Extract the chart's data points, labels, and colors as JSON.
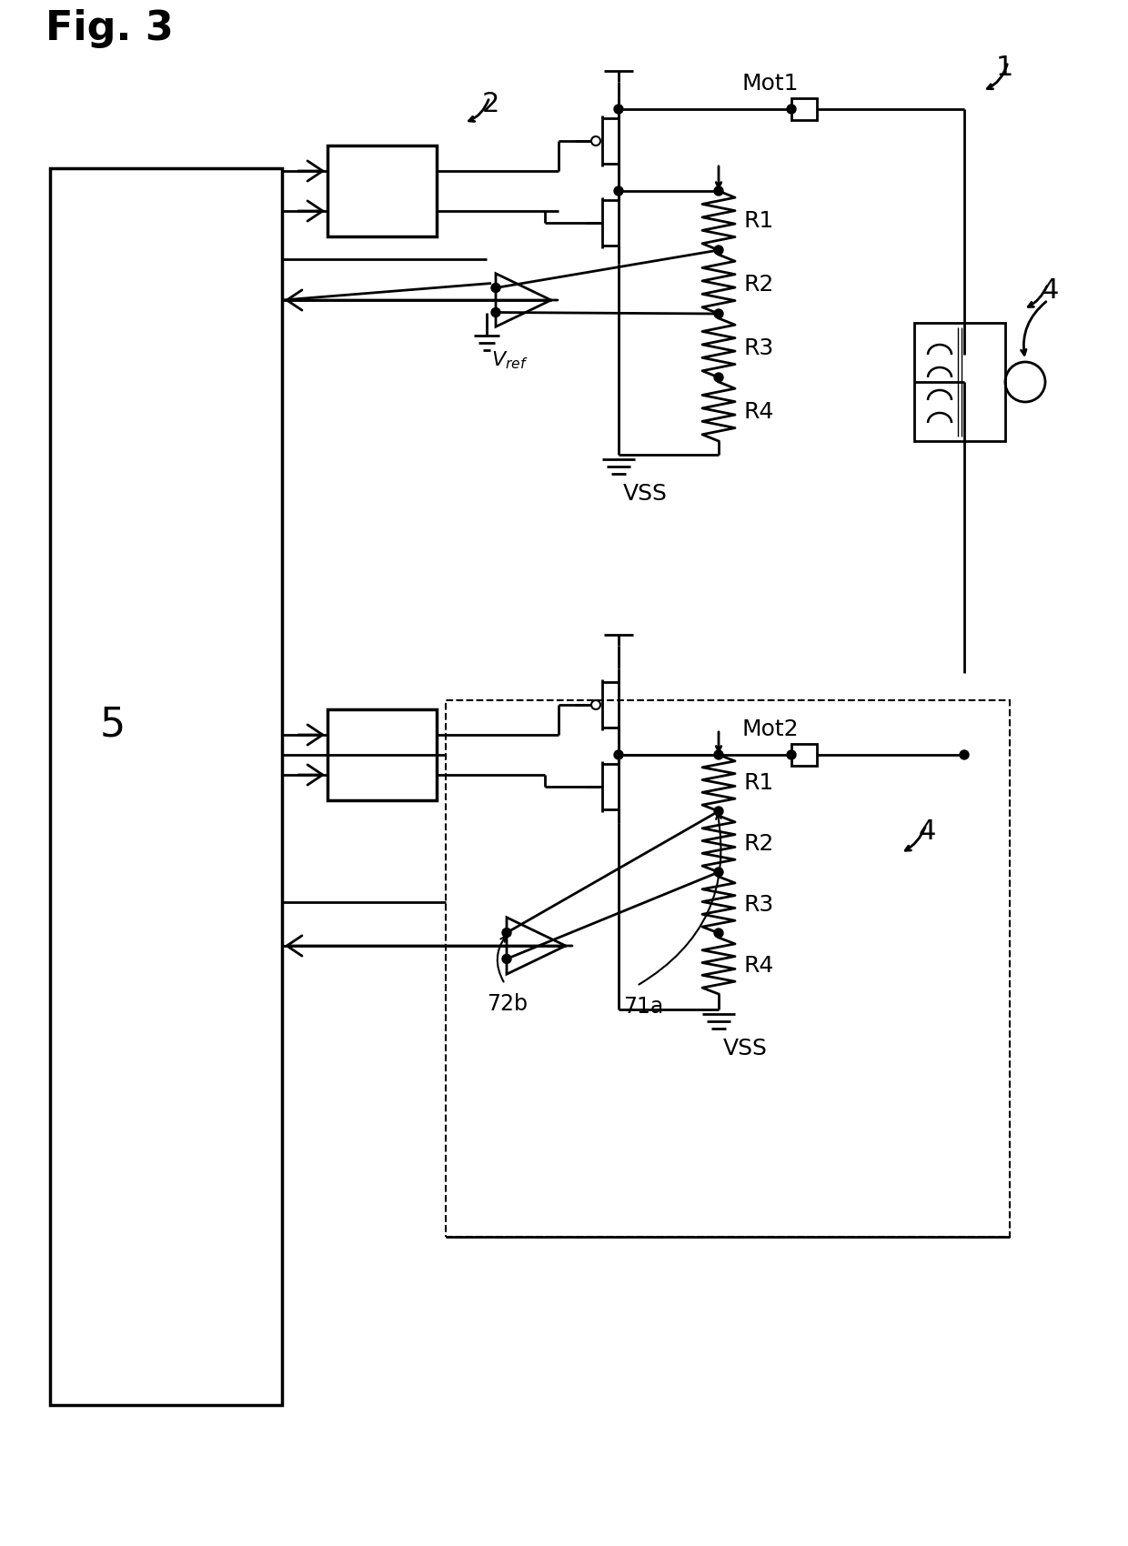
{
  "bg_color": "#ffffff",
  "lc": "#000000",
  "lw": 2.0,
  "fig_label": "Fig. 3",
  "label1": "1",
  "label2": "2",
  "label4": "4",
  "label5": "5",
  "label_mot1": "Mot1",
  "label_mot2": "Mot2",
  "label_vss": "VSS",
  "label_r": [
    "R1",
    "R2",
    "R3",
    "R4"
  ],
  "label_72b": "72b",
  "label_71a": "71a"
}
